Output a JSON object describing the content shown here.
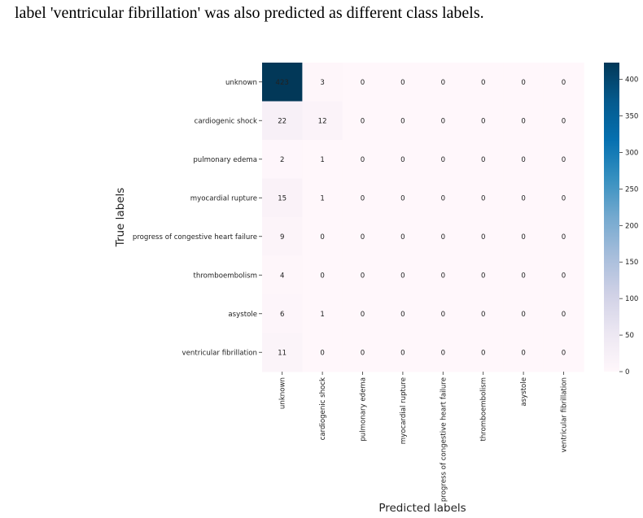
{
  "caption": "label 'ventricular fibrillation' was also predicted as different class labels.",
  "chart_data": {
    "type": "heatmap",
    "title": "",
    "xlabel": "Predicted labels",
    "ylabel": "True labels",
    "categories": [
      "unknown",
      "cardiogenic shock",
      "pulmonary edema",
      "myocardial rupture",
      "progress of congestive heart failure",
      "thromboembolism",
      "asystole",
      "ventricular fibrillation"
    ],
    "matrix": [
      [
        423,
        3,
        0,
        0,
        0,
        0,
        0,
        0
      ],
      [
        22,
        12,
        0,
        0,
        0,
        0,
        0,
        0
      ],
      [
        2,
        1,
        0,
        0,
        0,
        0,
        0,
        0
      ],
      [
        15,
        1,
        0,
        0,
        0,
        0,
        0,
        0
      ],
      [
        9,
        0,
        0,
        0,
        0,
        0,
        0,
        0
      ],
      [
        4,
        0,
        0,
        0,
        0,
        0,
        0,
        0
      ],
      [
        6,
        1,
        0,
        0,
        0,
        0,
        0,
        0
      ],
      [
        11,
        0,
        0,
        0,
        0,
        0,
        0,
        0
      ]
    ],
    "colormap": "PuBu",
    "colorbar": {
      "min": 0,
      "max": 423,
      "ticks": [
        0,
        50,
        100,
        150,
        200,
        250,
        300,
        350,
        400
      ]
    },
    "grid": false
  }
}
